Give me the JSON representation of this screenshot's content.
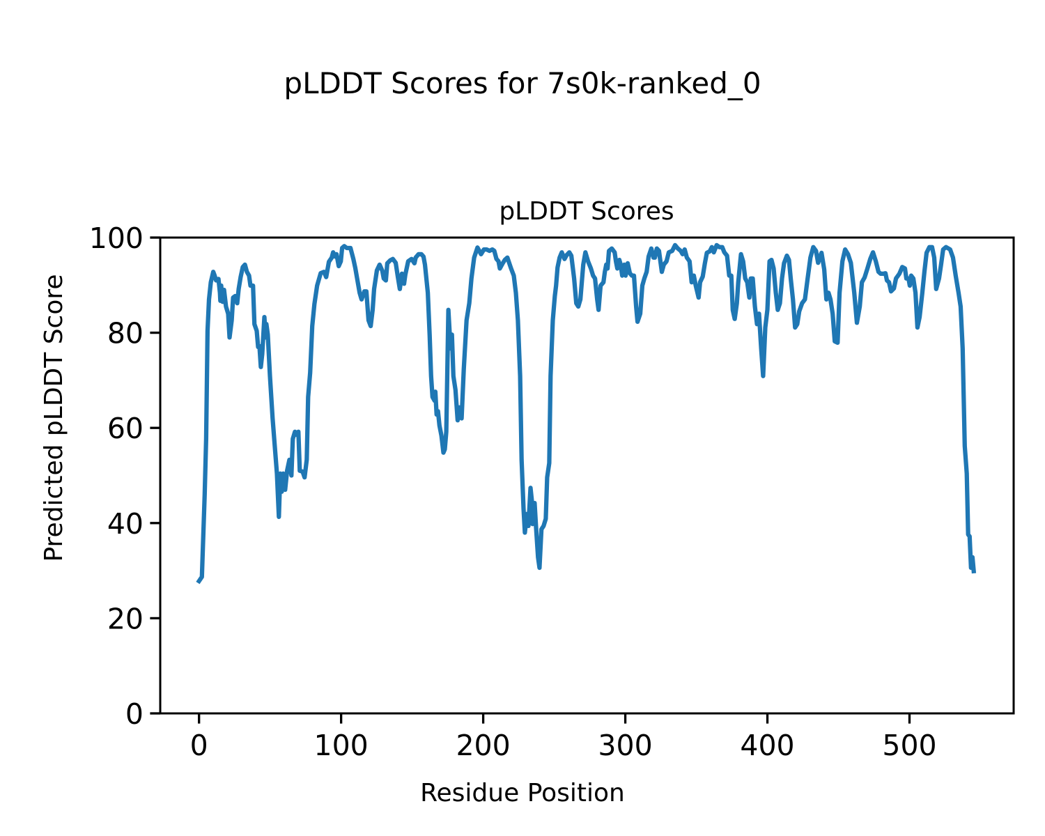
{
  "chart_data": {
    "type": "line",
    "suptitle": "pLDDT Scores for 7s0k-ranked_0",
    "title": "pLDDT Scores",
    "xlabel": "Residue Position",
    "ylabel": "Predicted pLDDT Score",
    "xlim": [
      -27.3,
      573.3
    ],
    "ylim": [
      0,
      100
    ],
    "xticks": [
      0,
      100,
      200,
      300,
      400,
      500
    ],
    "yticks": [
      0,
      20,
      40,
      60,
      80,
      100
    ],
    "xtick_labels": [
      "0",
      "100",
      "200",
      "300",
      "400",
      "500"
    ],
    "ytick_labels": [
      "0",
      "20",
      "40",
      "60",
      "80",
      "100"
    ],
    "grid": false,
    "series": [
      {
        "name": "pLDDT",
        "color": "#1f77b4",
        "x": [
          0,
          2,
          4,
          5,
          6,
          7,
          8.3,
          10,
          11,
          12,
          13.7,
          14.7,
          15,
          15.6,
          16.6,
          17.6,
          19,
          20.5,
          21.5,
          23,
          24,
          25.4,
          26.9,
          27.9,
          29.3,
          30.8,
          32.3,
          33.7,
          35.2,
          36.2,
          38,
          39,
          40.6,
          41.6,
          42.5,
          43.5,
          44.5,
          46,
          46.9,
          47.4,
          48.4,
          49.9,
          51.8,
          53.3,
          54.8,
          56.2,
          57.2,
          58.2,
          59.2,
          60.6,
          62,
          63.6,
          65,
          66,
          67.5,
          69,
          69.9,
          70.9,
          72.9,
          74.3,
          75.8,
          76.8,
          78.2,
          79.7,
          81.2,
          83.1,
          85.6,
          88,
          89.5,
          91.4,
          93.4,
          94.4,
          95.8,
          96.8,
          98.3,
          99.8,
          100.7,
          102.2,
          104,
          106.6,
          108.6,
          110,
          111.5,
          113,
          114.4,
          116.4,
          117.8,
          119.3,
          120.8,
          122.2,
          123.2,
          125.2,
          127.1,
          129,
          130,
          131.5,
          132.5,
          134.5,
          136.4,
          138.4,
          139.9,
          141.3,
          142.8,
          144.3,
          145.2,
          147.2,
          149.6,
          151.6,
          152.5,
          154.5,
          156.5,
          158,
          159,
          161,
          162.3,
          163.3,
          164.3,
          165.8,
          166.3,
          167.2,
          168.2,
          169.2,
          170.6,
          172,
          173,
          174,
          175.5,
          177,
          178,
          179,
          180.5,
          182,
          183.3,
          184.8,
          186.3,
          188.3,
          190.2,
          191.7,
          193.6,
          196,
          198.5,
          200.5,
          202.4,
          204.4,
          206.4,
          207.8,
          209.3,
          210.8,
          211.7,
          213.7,
          215.2,
          217,
          219.6,
          221.5,
          223,
          224.4,
          226,
          227,
          228.4,
          229.3,
          230.8,
          231.8,
          233.3,
          234.3,
          234.7,
          236.2,
          237.2,
          238.6,
          239.6,
          241,
          242.5,
          244,
          245,
          246.5,
          247.4,
          249,
          250.4,
          251.3,
          252.3,
          253.8,
          255.3,
          257.2,
          258.7,
          260.6,
          262,
          264,
          265.5,
          266.9,
          268.4,
          270.4,
          271.9,
          273.8,
          275.8,
          277.3,
          278.7,
          280.2,
          281.2,
          282.6,
          284.6,
          285.6,
          286.6,
          287.5,
          288.5,
          290.5,
          292.5,
          293.4,
          294.4,
          295.8,
          296.8,
          297.8,
          299.3,
          300.2,
          301.7,
          303.2,
          304.6,
          306.1,
          307.6,
          308.6,
          310.5,
          312,
          313.4,
          315,
          316.4,
          318.3,
          319.8,
          320.8,
          322.2,
          323.7,
          325.7,
          327.1,
          329,
          330.6,
          333,
          335,
          337,
          339,
          340.3,
          341.8,
          343.3,
          345.2,
          346.7,
          348.2,
          349.6,
          351.6,
          352.6,
          354.5,
          356,
          357.4,
          359.4,
          360.9,
          362.3,
          364.3,
          366.2,
          368.2,
          369.7,
          371.6,
          373.1,
          374.6,
          375.6,
          377,
          378.5,
          379.5,
          381.4,
          382.9,
          384.4,
          385.8,
          387.3,
          388.3,
          389.7,
          391.2,
          392.7,
          394.1,
          395.6,
          397,
          398.5,
          400,
          401.5,
          402.9,
          404.4,
          405.9,
          407.3,
          408.8,
          410.3,
          411.7,
          413.7,
          415.2,
          416.4,
          418,
          419.5,
          421,
          422.4,
          424.4,
          426.4,
          428.3,
          430.3,
          432.3,
          434.2,
          435.7,
          438.1,
          440,
          441.5,
          443,
          444.4,
          445.9,
          447.4,
          449.4,
          450.8,
          452.8,
          454.7,
          456.7,
          458.7,
          461.1,
          463,
          465,
          466.5,
          468.4,
          470.4,
          472.4,
          474.3,
          476.3,
          478.2,
          479.7,
          481.7,
          483.1,
          484.1,
          485.6,
          487,
          489,
          490.5,
          492.9,
          494.9,
          496.8,
          497.8,
          499.3,
          500.2,
          501.2,
          502.7,
          504.2,
          505.6,
          507.1,
          509,
          510.5,
          512,
          514,
          515.9,
          517.4,
          518.8,
          520.8,
          522.2,
          523.7,
          525.7,
          528.6,
          530.6,
          532.5,
          534.5,
          536,
          537.4,
          538.9,
          540.3,
          541.3,
          542.3,
          543.3,
          544.3,
          545.2
        ],
        "y": [
          27.8,
          28.7,
          46,
          57.7,
          80.4,
          87,
          90.6,
          92.8,
          92,
          91,
          91.3,
          88.4,
          86.7,
          89.9,
          86.5,
          89,
          85.5,
          84,
          79,
          82.6,
          87.4,
          87.7,
          86.2,
          89.2,
          91.7,
          93.8,
          94.3,
          92.8,
          92,
          89.9,
          89.9,
          81.8,
          80.4,
          77,
          77.2,
          72.8,
          75.5,
          83.3,
          79,
          81.8,
          79.6,
          70.9,
          62,
          56.2,
          50.4,
          41.3,
          50.4,
          46.6,
          50.4,
          47,
          51,
          53.3,
          50,
          57.7,
          59.2,
          58.5,
          59.2,
          51,
          50.8,
          49.6,
          53.3,
          66.5,
          71.6,
          81.4,
          86,
          89.9,
          92.5,
          92.8,
          91.7,
          94.9,
          95.8,
          96.9,
          96,
          96.5,
          94,
          95,
          97.8,
          98.2,
          97.8,
          97.8,
          95.5,
          93.6,
          91,
          88.4,
          87,
          88.7,
          88.7,
          82.6,
          81.4,
          84.8,
          89.2,
          93.1,
          94.3,
          93,
          91.4,
          91,
          94.6,
          95.2,
          95.5,
          94.7,
          91.8,
          89.2,
          92.4,
          90.3,
          92.2,
          95,
          95.5,
          94.6,
          95.8,
          96.5,
          96.5,
          96,
          94.3,
          88.4,
          79.6,
          70.9,
          66.5,
          65.7,
          67.6,
          62.8,
          63.5,
          60.5,
          58.4,
          54.8,
          55.5,
          59.2,
          84.8,
          76.7,
          79.6,
          70.9,
          68,
          61.6,
          64.3,
          62,
          72.3,
          82.6,
          86.2,
          91.4,
          95.8,
          97.9,
          96.5,
          97.5,
          97.5,
          97.2,
          97.5,
          97.2,
          95.5,
          95,
          93.5,
          94.6,
          95.3,
          95.8,
          93.5,
          92,
          88.4,
          82.6,
          70.9,
          53.3,
          43,
          38,
          41.9,
          39.4,
          47.4,
          44.5,
          39.8,
          44.2,
          39,
          32.8,
          30.6,
          38.7,
          39.4,
          40.9,
          49.6,
          52.6,
          70.9,
          82.6,
          87.7,
          89.9,
          93.7,
          95.8,
          96.9,
          95.5,
          96.3,
          96.9,
          96.2,
          91.4,
          86.2,
          85.5,
          87,
          94.3,
          96.9,
          95,
          93.5,
          92,
          91.4,
          87,
          84.8,
          89.9,
          90.6,
          92.8,
          94.3,
          93.5,
          97.2,
          97.7,
          96.9,
          95,
          93.5,
          95.3,
          94.3,
          92,
          94.3,
          92,
          94.6,
          92.5,
          92,
          92,
          85.5,
          82.3,
          84,
          89.9,
          91.4,
          92.8,
          96,
          97.7,
          95.8,
          95.8,
          97.7,
          97.2,
          92.8,
          94.3,
          95,
          96.9,
          97.2,
          98.4,
          97.7,
          97.2,
          96.5,
          97.5,
          95.8,
          95,
          90.6,
          92,
          89.9,
          87.4,
          90.6,
          91.8,
          94.6,
          96.8,
          97.1,
          98,
          96.9,
          98.4,
          98,
          98,
          96.9,
          96.2,
          92,
          92,
          84.8,
          82.9,
          86.2,
          90.6,
          96.5,
          95,
          91.4,
          90.6,
          87.4,
          91.4,
          91.4,
          85.5,
          81.8,
          84,
          76.7,
          70.9,
          81.1,
          84.8,
          95,
          95.3,
          93.5,
          88.4,
          84.8,
          86.2,
          91.4,
          94.6,
          96.2,
          95.3,
          91.4,
          87,
          81.1,
          81.8,
          84.5,
          86.2,
          87,
          91.4,
          95.8,
          98,
          97.2,
          94.7,
          96.8,
          93.3,
          87,
          88.4,
          87,
          84,
          78.2,
          77.9,
          88.4,
          95,
          97.5,
          96.5,
          94.7,
          88.4,
          82.1,
          85.5,
          90.6,
          91.6,
          93.5,
          95.5,
          96.9,
          95,
          92.8,
          92.4,
          92.4,
          92.5,
          91,
          90.6,
          88.7,
          89.3,
          91.4,
          92.4,
          93.8,
          93.5,
          91.4,
          91.4,
          89.9,
          92,
          91.4,
          88.4,
          81.1,
          83.3,
          88.4,
          92.8,
          96.8,
          98,
          98,
          95.8,
          89.2,
          91.4,
          94.3,
          97.5,
          98,
          97.5,
          95.8,
          92,
          88.4,
          85.5,
          76.7,
          56.2,
          50.4,
          37.6,
          37.2,
          30.6,
          32.8,
          29.9
        ]
      }
    ]
  }
}
